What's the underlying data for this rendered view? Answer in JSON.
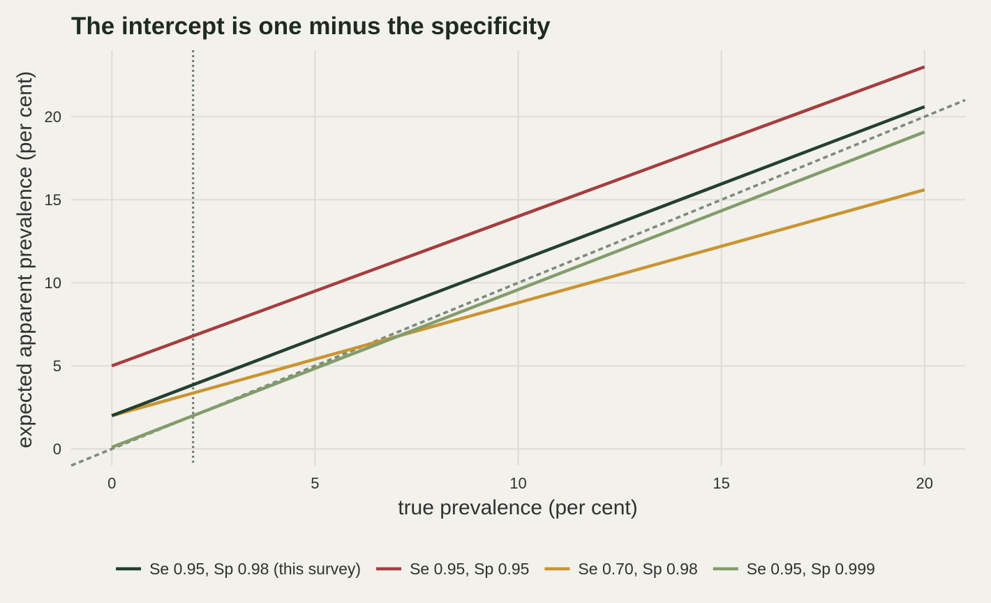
{
  "chart_data": {
    "type": "line",
    "title": "The intercept is one minus the specificity",
    "xlabel": "true prevalence (per cent)",
    "ylabel": "expected apparent prevalence (per cent)",
    "xlim": [
      -1,
      21
    ],
    "ylim": [
      -1,
      24
    ],
    "xticks": [
      0,
      5,
      10,
      15,
      20
    ],
    "yticks": [
      0,
      5,
      10,
      15,
      20
    ],
    "grid": true,
    "legend_position": "bottom",
    "series": [
      {
        "name": "Se 0.95, Sp 0.98 (this survey)",
        "color": "#24402e",
        "x": [
          0,
          20
        ],
        "y": [
          2.0,
          20.6
        ]
      },
      {
        "name": "Se 0.95, Sp 0.95",
        "color": "#a63d40",
        "x": [
          0,
          20
        ],
        "y": [
          5.0,
          23.0
        ]
      },
      {
        "name": "Se 0.70, Sp 0.98",
        "color": "#c99532",
        "x": [
          0,
          20
        ],
        "y": [
          2.0,
          15.6
        ]
      },
      {
        "name": "Se 0.95, Sp 0.999",
        "color": "#839c6c",
        "x": [
          0,
          20
        ],
        "y": [
          0.1,
          19.08
        ]
      }
    ],
    "reference_lines": [
      {
        "kind": "identity",
        "style": "dotted",
        "color": "#7d8a7c",
        "x": [
          -1,
          21
        ],
        "y": [
          -1,
          21
        ]
      },
      {
        "kind": "vertical",
        "style": "dotted",
        "color": "#6f7a6d",
        "x": 2
      }
    ]
  }
}
